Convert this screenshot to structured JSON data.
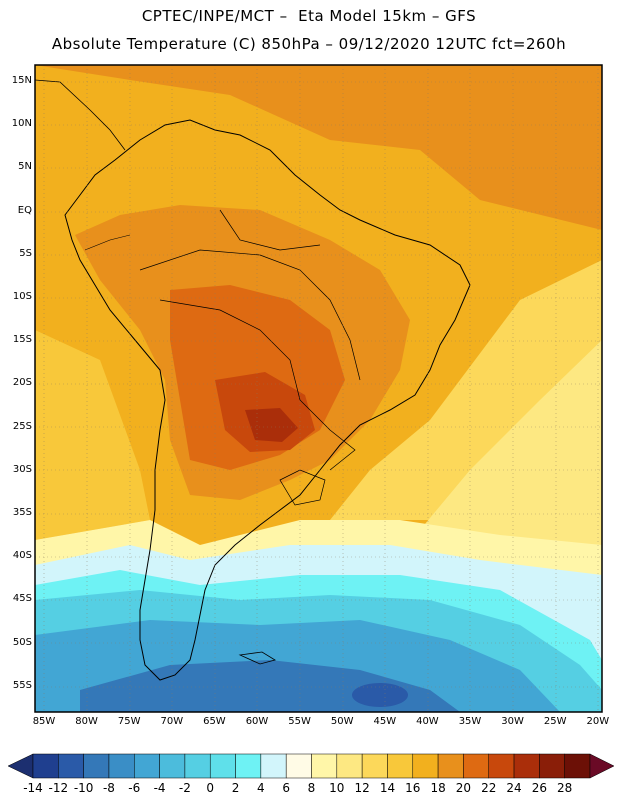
{
  "header": {
    "title_line1": "CPTEC/INPE/MCT –  Eta Model 15km – GFS",
    "title_line2": "Absolute Temperature (C) 850hPa – 09/12/2020 12UTC fct=260h"
  },
  "map": {
    "latitude_labels": [
      "15N",
      "10N",
      "5N",
      "EQ",
      "5S",
      "10S",
      "15S",
      "20S",
      "25S",
      "30S",
      "35S",
      "40S",
      "45S",
      "50S",
      "55S"
    ],
    "longitude_labels": [
      "85W",
      "80W",
      "75W",
      "70W",
      "65W",
      "60W",
      "55W",
      "50W",
      "45W",
      "40W",
      "35W",
      "30W",
      "25W",
      "20W"
    ]
  },
  "colorbar": {
    "labels": [
      "-14",
      "-12",
      "-10",
      "-8",
      "-6",
      "-4",
      "-2",
      "0",
      "2",
      "4",
      "6",
      "8",
      "10",
      "12",
      "14",
      "16",
      "18",
      "20",
      "22",
      "24",
      "26",
      "28"
    ],
    "colors": [
      "#1f3f8f",
      "#2a5aa8",
      "#3478b8",
      "#3a8ec6",
      "#42a6d4",
      "#4cbcdc",
      "#55cfe3",
      "#5fe0ea",
      "#6ef2f4",
      "#d2f5fb",
      "#fffbe6",
      "#fff6a8",
      "#fde882",
      "#fcd85a",
      "#f8c83a",
      "#f2b01e",
      "#e8901c",
      "#de6a12",
      "#c8480c",
      "#aa2e0a",
      "#8a1e08",
      "#6c1006"
    ],
    "under_color": "#1c2f70",
    "over_color": "#6a0a26"
  }
}
